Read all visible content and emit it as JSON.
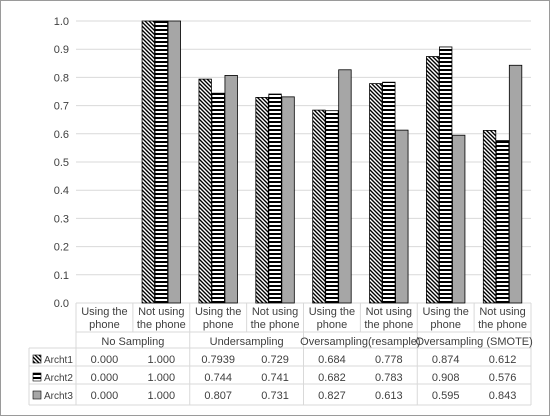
{
  "chart_data": {
    "type": "bar",
    "yticks": [
      "0.0",
      "0.1",
      "0.2",
      "0.3",
      "0.4",
      "0.5",
      "0.6",
      "0.7",
      "0.8",
      "0.9",
      "1.0"
    ],
    "ylim": [
      0,
      1.0
    ],
    "grid": true,
    "legend": "data-table-left",
    "groups": [
      {
        "label": "No Sampling",
        "categories": [
          "Using the|phone",
          "Not using|the phone"
        ]
      },
      {
        "label": "Undersampling",
        "categories": [
          "Using the|phone",
          "Not using|the phone"
        ]
      },
      {
        "label": "Oversampling(resample)",
        "categories": [
          "Using the|phone",
          "Not using|the phone"
        ]
      },
      {
        "label": "Oversampling (SMOTE)",
        "categories": [
          "Using the|phone",
          "Not using|the phone"
        ]
      }
    ],
    "series": [
      {
        "name": "Archt1",
        "pattern": "diagonal",
        "values": [
          0.0,
          1.0,
          0.7939,
          0.729,
          0.684,
          0.778,
          0.874,
          0.612
        ],
        "labels": [
          "0.000",
          "1.000",
          "0.7939",
          "0.729",
          "0.684",
          "0.778",
          "0.874",
          "0.612"
        ]
      },
      {
        "name": "Archt2",
        "pattern": "horizontal",
        "values": [
          0.0,
          1.0,
          0.744,
          0.741,
          0.682,
          0.783,
          0.908,
          0.576
        ],
        "labels": [
          "0.000",
          "1.000",
          "0.744",
          "0.741",
          "0.682",
          "0.783",
          "0.908",
          "0.576"
        ]
      },
      {
        "name": "Archt3",
        "pattern": "solid-gray",
        "values": [
          0.0,
          1.0,
          0.807,
          0.731,
          0.827,
          0.613,
          0.595,
          0.843
        ],
        "labels": [
          "0.000",
          "1.000",
          "0.807",
          "0.731",
          "0.827",
          "0.613",
          "0.595",
          "0.843"
        ]
      }
    ],
    "colors": {
      "bar_stroke": "#000000",
      "solid_fill": "#a6a6a6",
      "grid": "#d9d9d9",
      "text": "#404040"
    }
  }
}
